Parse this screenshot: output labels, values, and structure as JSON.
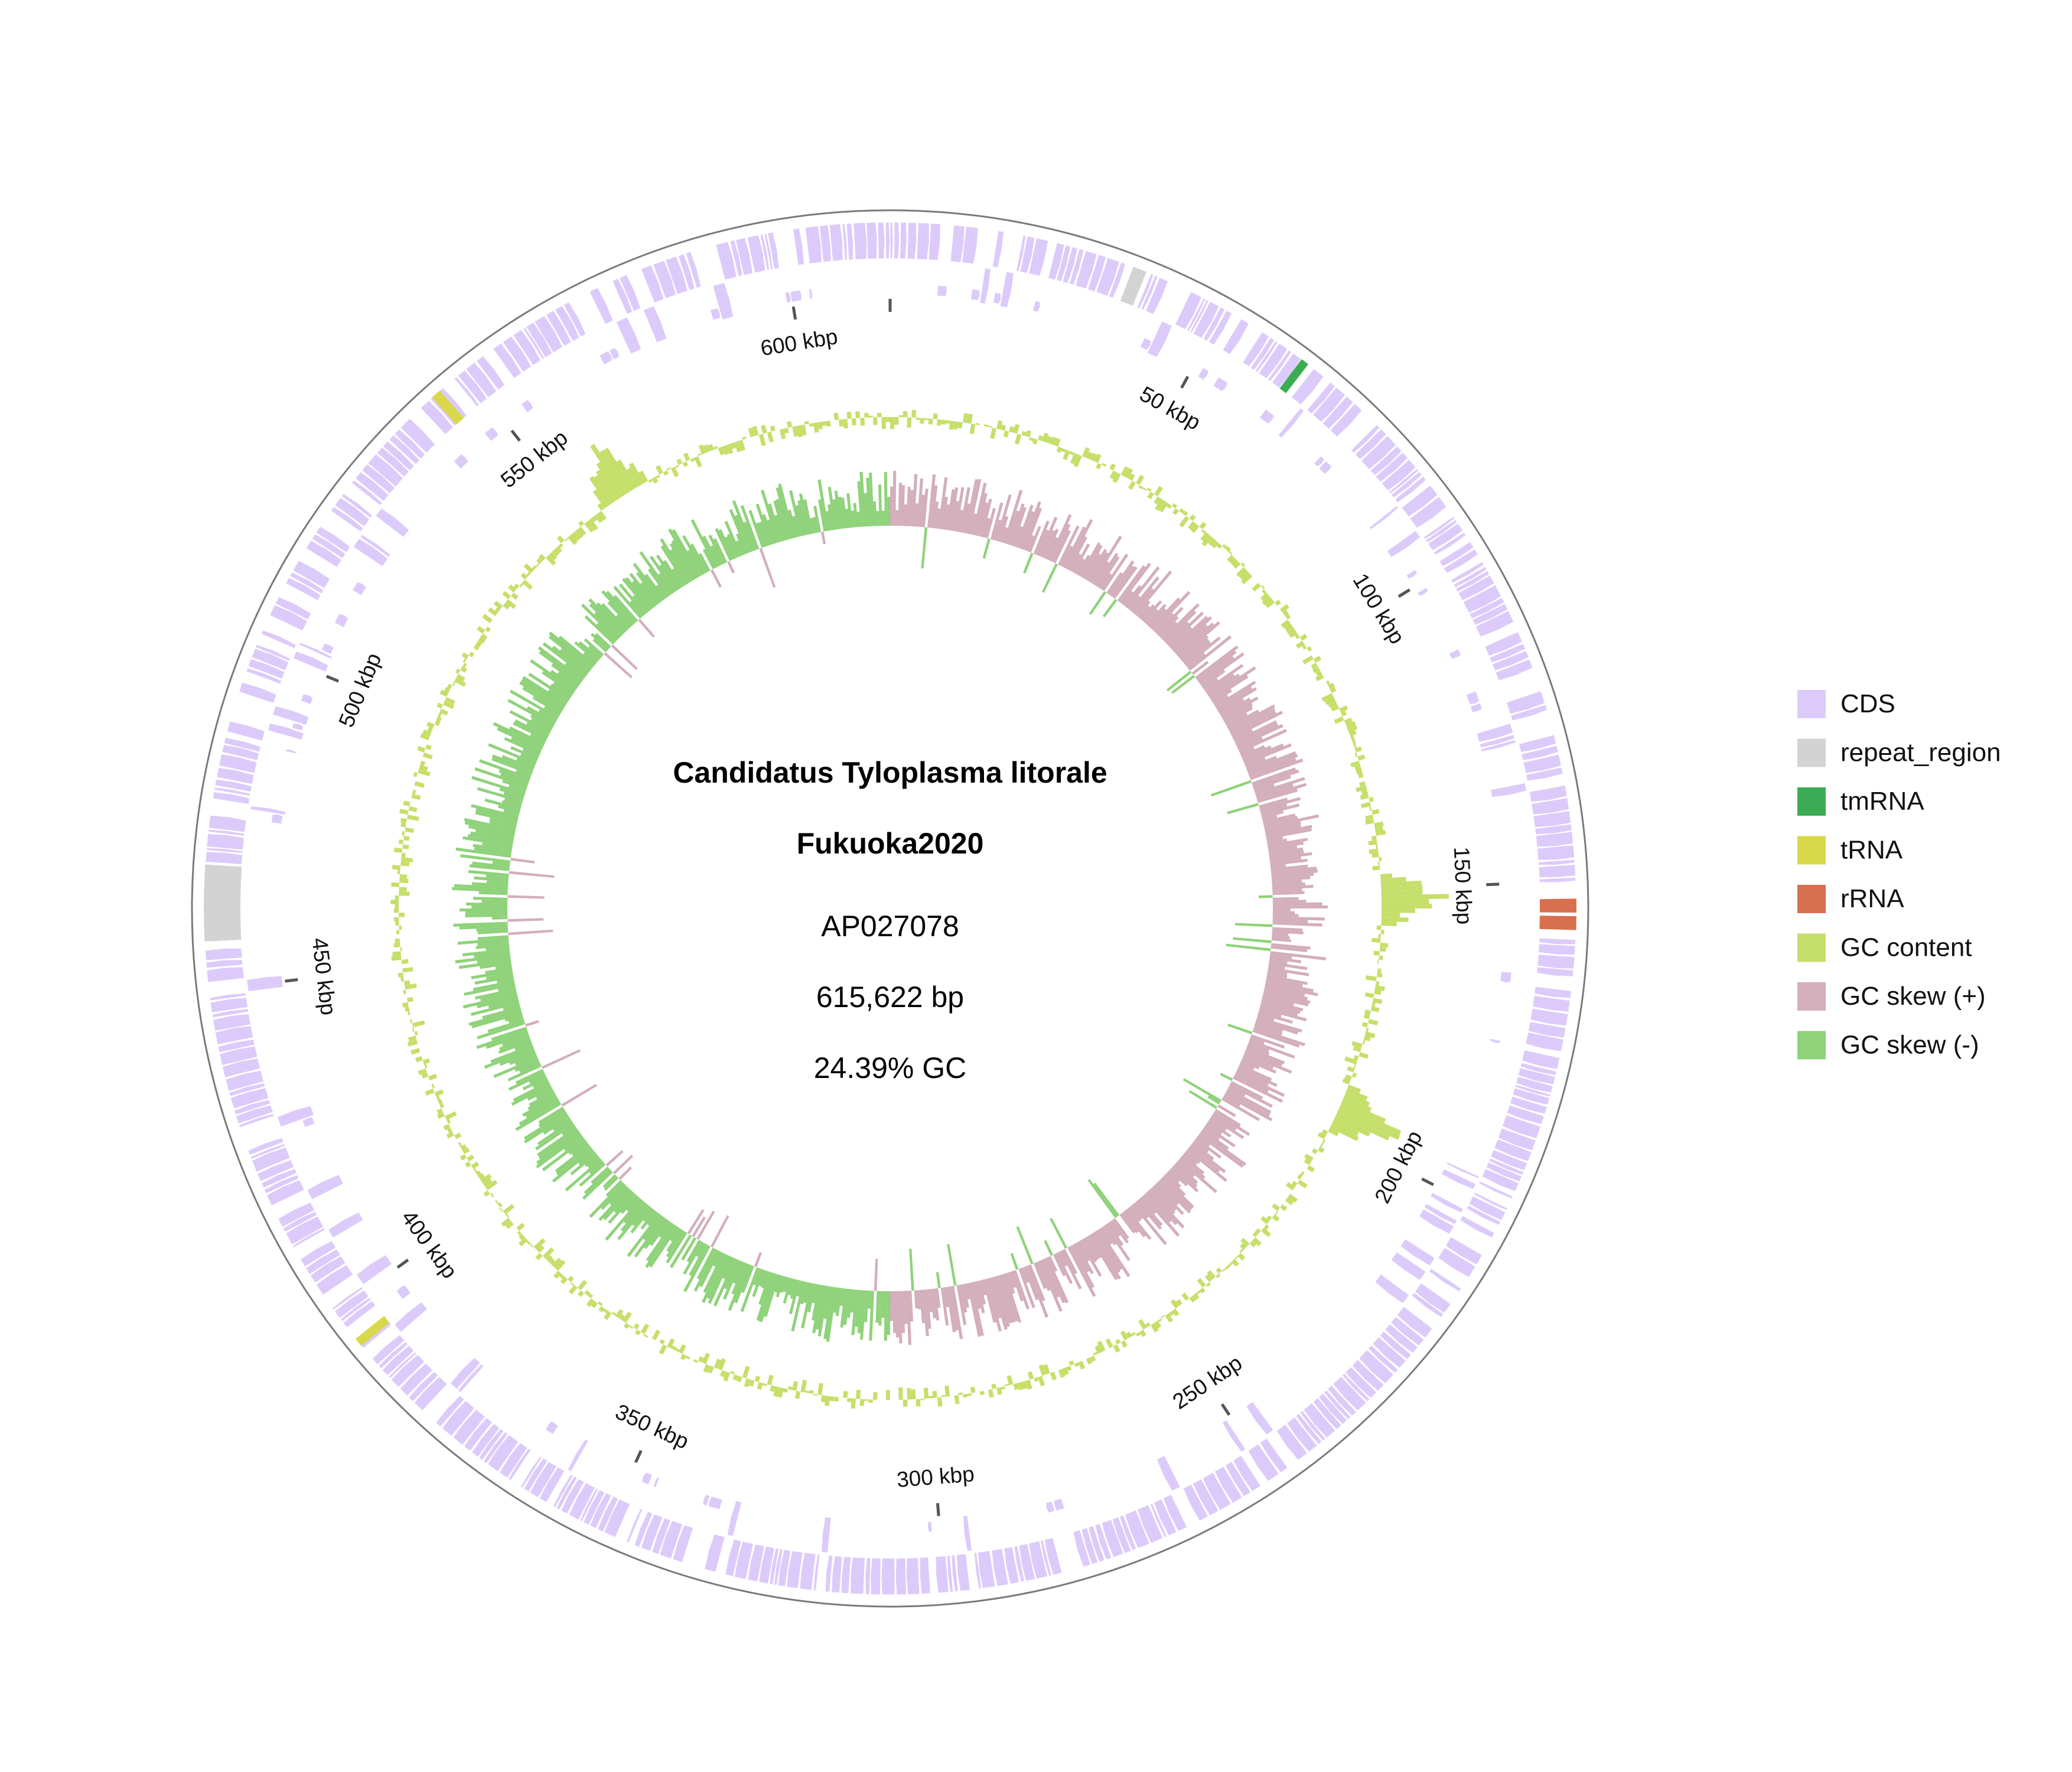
{
  "title": {
    "organism": "Candidatus Tyloplasma litorale",
    "strain": "Fukuoka2020",
    "accession": "AP027078",
    "length": "615,622 bp",
    "gc": "24.39% GC"
  },
  "genome_length_bp": 615622,
  "tick_labels": [
    "50 kbp",
    "100 kbp",
    "150 kbp",
    "200 kbp",
    "250 kbp",
    "300 kbp",
    "350 kbp",
    "400 kbp",
    "450 kbp",
    "500 kbp",
    "550 kbp",
    "600 kbp"
  ],
  "legend": [
    {
      "label": "CDS",
      "color": "#dccbfa"
    },
    {
      "label": "repeat_region",
      "color": "#d3d3d3"
    },
    {
      "label": "tmRNA",
      "color": "#3cac54"
    },
    {
      "label": "tRNA",
      "color": "#d9d84a"
    },
    {
      "label": "rRNA",
      "color": "#d6704f"
    },
    {
      "label": "GC content",
      "color": "#c6df6a"
    },
    {
      "label": "GC skew (+)",
      "color": "#d3aebb"
    },
    {
      "label": "GC skew (-)",
      "color": "#8fd27a"
    }
  ],
  "features": {
    "repeat_regions_kbp": [
      [
        35.5,
        37.5
      ],
      [
        457,
        468
      ]
    ],
    "rrna_kbp": [
      [
        152.5,
        154.5
      ],
      [
        155,
        157
      ]
    ],
    "trna_kbp": [
      [
        544,
        545.5
      ],
      [
        394,
        395.3
      ]
    ],
    "tmrna_kbp": [
      [
        63,
        64.2
      ]
    ]
  },
  "chart_data": {
    "type": "circular-genome",
    "gc_skew_sign_by_region_kbp": [
      {
        "start": 0,
        "end": 154,
        "sign": "+"
      },
      {
        "start": 154,
        "end": 308,
        "sign": "+"
      },
      {
        "start": 308,
        "end": 462,
        "sign": "-"
      },
      {
        "start": 462,
        "end": 615.6,
        "sign": "-"
      }
    ],
    "gc_content_peak_kbp": [
      152,
      195,
      560
    ]
  }
}
